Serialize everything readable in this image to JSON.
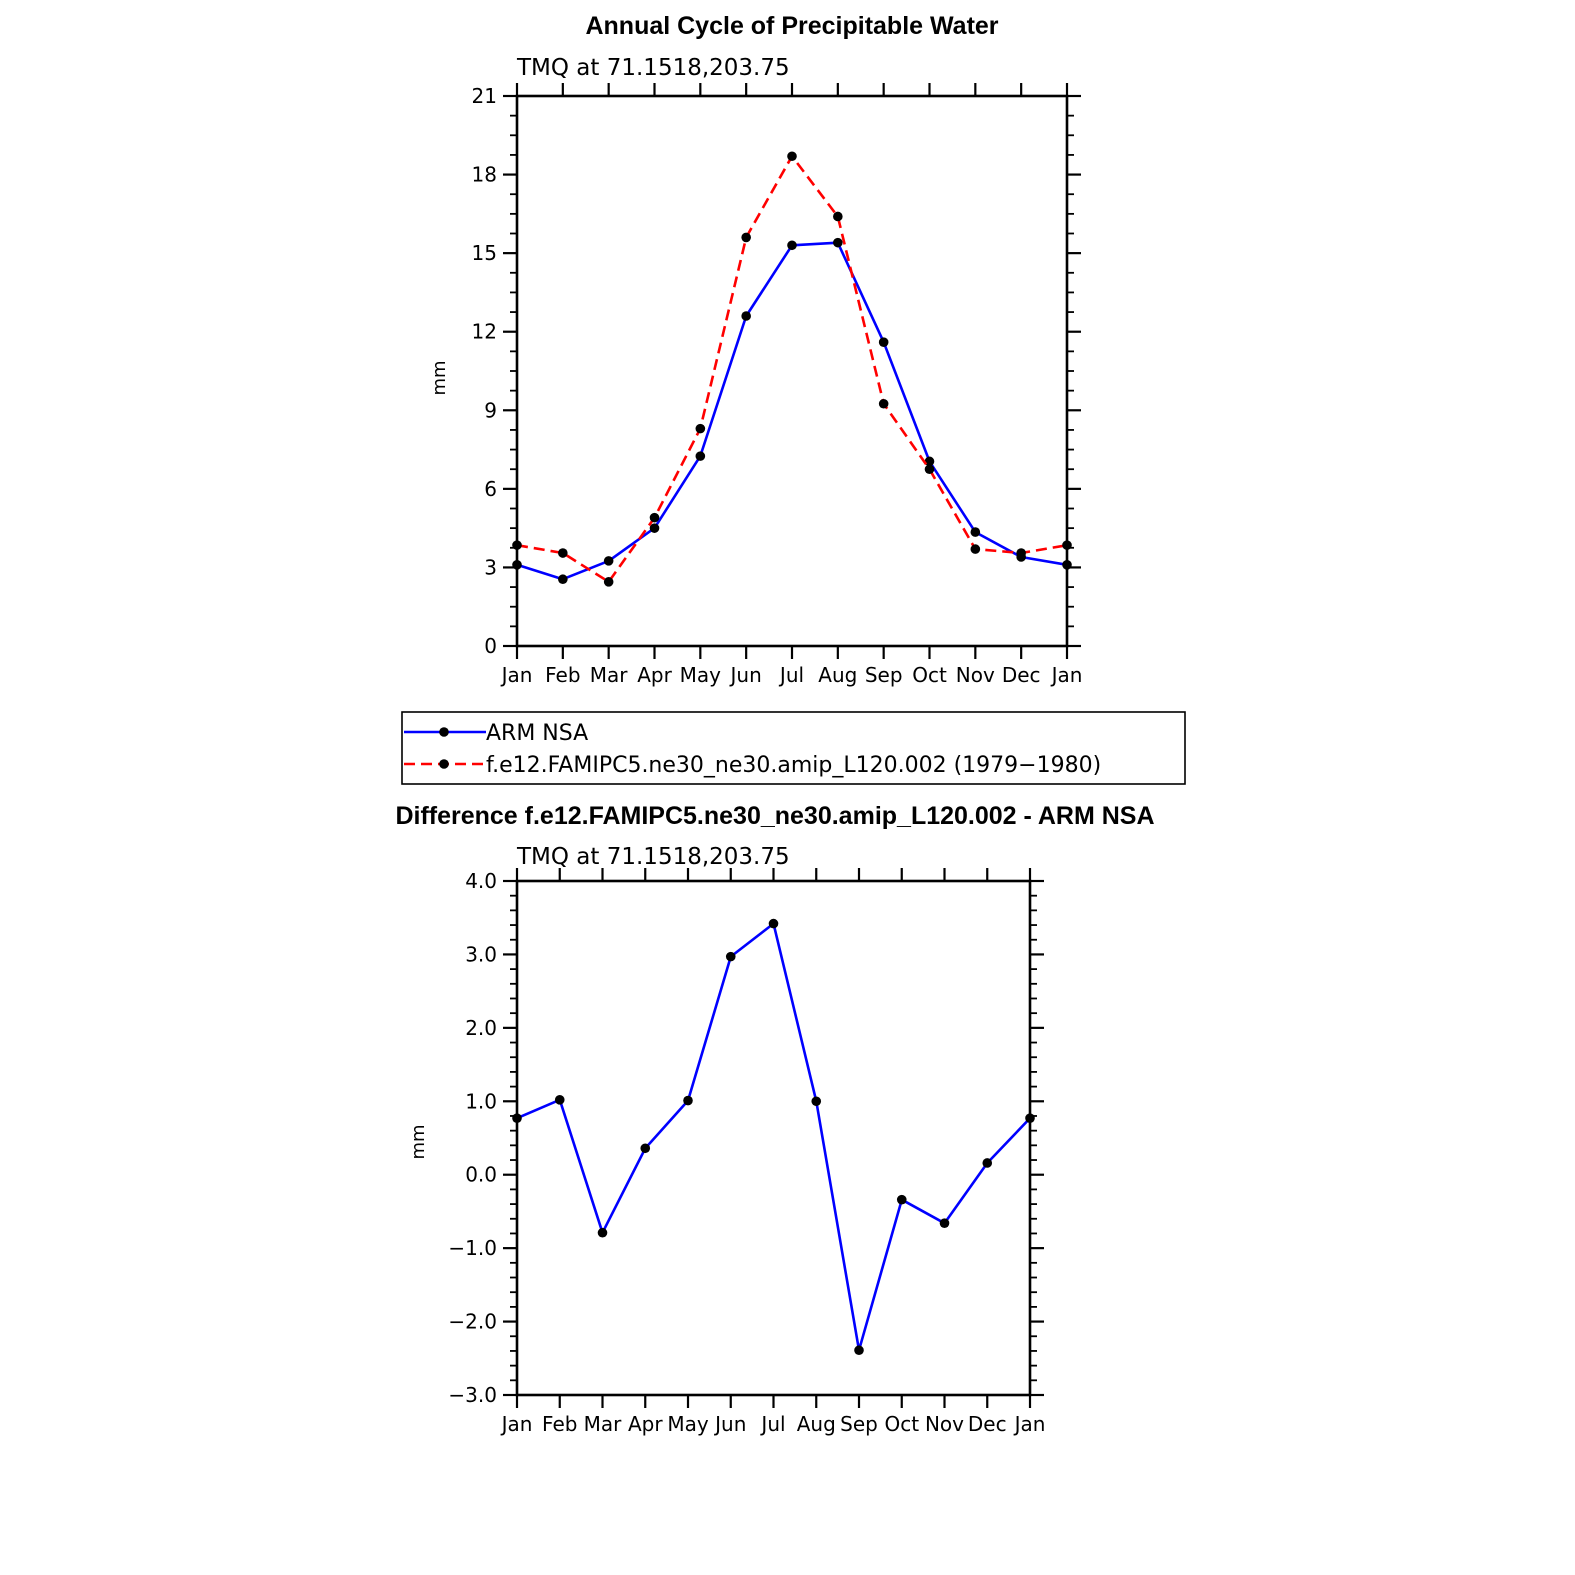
{
  "chart_data": [
    {
      "type": "line",
      "title": "Annual Cycle of Precipitable Water",
      "subtitle": "TMQ at 71.1518,203.75",
      "xlabel": "",
      "ylabel": "mm",
      "categories": [
        "Jan",
        "Feb",
        "Mar",
        "Apr",
        "May",
        "Jun",
        "Jul",
        "Aug",
        "Sep",
        "Oct",
        "Nov",
        "Dec",
        "Jan"
      ],
      "ylim": [
        0,
        21
      ],
      "yticks": [
        0,
        3,
        6,
        9,
        12,
        15,
        18,
        21
      ],
      "ytick_labels": [
        "0",
        "3",
        "6",
        "9",
        "12",
        "15",
        "18",
        "21"
      ],
      "grid": false,
      "legend_position": "below",
      "series": [
        {
          "name": "ARM NSA",
          "color": "#0000ff",
          "dash": "solid",
          "values": [
            3.1,
            2.55,
            3.25,
            4.5,
            7.25,
            12.6,
            15.3,
            15.4,
            11.6,
            7.05,
            4.35,
            3.4,
            3.1
          ]
        },
        {
          "name": "f.e12.FAMIPC5.ne30_ne30.amip_L120.002 (1979−1980)",
          "color": "#ff0000",
          "dash": "dashed",
          "values": [
            3.85,
            3.55,
            2.45,
            4.9,
            8.3,
            15.6,
            18.7,
            16.4,
            9.25,
            6.75,
            3.7,
            3.55,
            3.85
          ]
        }
      ]
    },
    {
      "type": "line",
      "title": "Difference f.e12.FAMIPC5.ne30_ne30.amip_L120.002 - ARM NSA",
      "subtitle": "TMQ at 71.1518,203.75",
      "xlabel": "",
      "ylabel": "mm",
      "categories": [
        "Jan",
        "Feb",
        "Mar",
        "Apr",
        "May",
        "Jun",
        "Jul",
        "Aug",
        "Sep",
        "Oct",
        "Nov",
        "Dec",
        "Jan"
      ],
      "ylim": [
        -3,
        4
      ],
      "yticks": [
        -3,
        -2,
        -1,
        0,
        1,
        2,
        3,
        4
      ],
      "ytick_labels": [
        "−3.0",
        "−2.0",
        "−1.0",
        "0.0",
        "1.0",
        "2.0",
        "3.0",
        "4.0"
      ],
      "grid": false,
      "series": [
        {
          "color": "#0000ff",
          "dash": "solid",
          "values": [
            0.77,
            1.02,
            -0.79,
            0.36,
            1.01,
            2.97,
            3.42,
            1.0,
            -2.39,
            -0.34,
            -0.66,
            0.16,
            0.77
          ]
        }
      ]
    }
  ]
}
